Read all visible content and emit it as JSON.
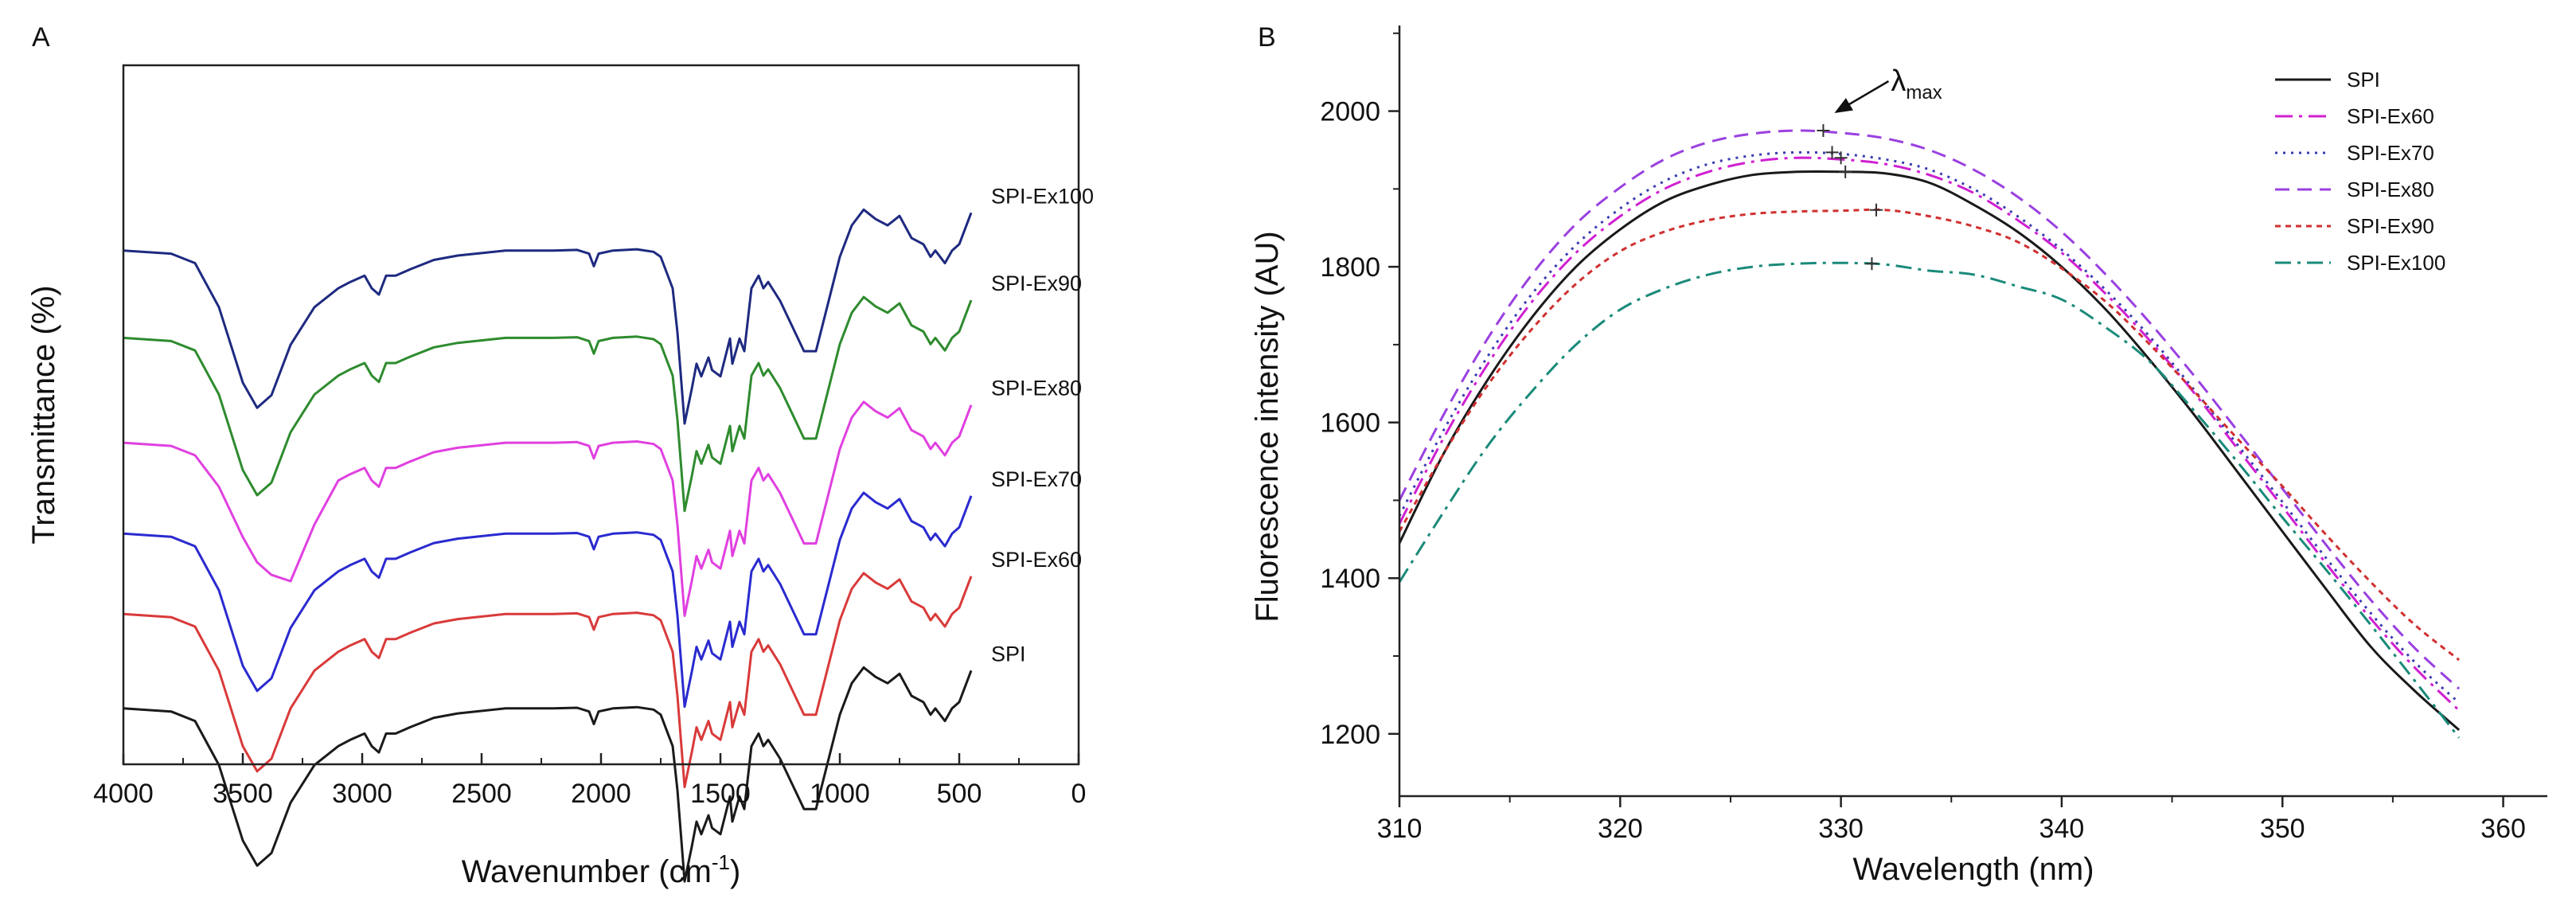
{
  "colors": {
    "SPI": "#1a1a1a",
    "SPI-Ex60": "#d93a3a",
    "SPI-Ex70": "#2a2ad0",
    "SPI-Ex80": "#e040e0",
    "SPI-Ex90": "#2e8b2e",
    "SPI-Ex100": "#1e2a80",
    "B_SPI": "#1a1a1a",
    "B_SPI-Ex60": "#d020d0",
    "B_SPI-Ex70": "#3a3ab0",
    "B_SPI-Ex80": "#9a40e0",
    "B_SPI-Ex90": "#d03030",
    "B_SPI-Ex100": "#1a8a7a"
  },
  "chart_data": [
    {
      "panel": "A",
      "type": "line",
      "title": "",
      "xlabel": "Wavenumber (cm-1)",
      "xlabel_main": "Wavenumber (cm",
      "xlabel_sup": "-1",
      "xlabel_close": ")",
      "ylabel": "Transmittance (%)",
      "xlim": [
        4000,
        0
      ],
      "x_ticks": [
        4000,
        3500,
        3000,
        2500,
        2000,
        1500,
        1000,
        500,
        0
      ],
      "x_tick_labels": [
        "4000",
        "3500",
        "3000",
        "2500",
        "2000",
        "1500",
        "1000",
        "500",
        "0"
      ],
      "ylim": [
        0,
        100
      ],
      "y_ticks_shown": false,
      "profile_x": [
        4000,
        3800,
        3700,
        3600,
        3500,
        3440,
        3380,
        3300,
        3200,
        3100,
        3050,
        2990,
        2960,
        2930,
        2900,
        2860,
        2800,
        2700,
        2600,
        2400,
        2200,
        2100,
        2050,
        2030,
        2010,
        1950,
        1850,
        1780,
        1750,
        1700,
        1680,
        1650,
        1620,
        1600,
        1580,
        1550,
        1535,
        1500,
        1460,
        1450,
        1420,
        1400,
        1370,
        1340,
        1320,
        1300,
        1250,
        1200,
        1150,
        1100,
        1080,
        1000,
        950,
        900,
        850,
        800,
        750,
        700,
        650,
        620,
        600,
        560,
        530,
        500,
        450
      ],
      "profile_delta": [
        0,
        -0.5,
        -2,
        -9,
        -21,
        -25,
        -23,
        -15,
        -9,
        -6,
        -5,
        -4,
        -6,
        -7,
        -4,
        -4,
        -3,
        -1.5,
        -0.8,
        0,
        0,
        0.1,
        -0.5,
        -2.5,
        -0.5,
        0,
        0.2,
        -0.2,
        -1,
        -6,
        -13,
        -27.5,
        -22,
        -18,
        -20,
        -17,
        -19,
        -20,
        -14,
        -18,
        -14,
        -16,
        -6,
        -4,
        -6,
        -5,
        -8,
        -12,
        -16,
        -16,
        -13,
        -1,
        4,
        6.5,
        5,
        4,
        5.5,
        2,
        1,
        -1,
        0,
        -2,
        0,
        1,
        6
      ],
      "series": [
        {
          "name": "SPI-Ex100",
          "label": "SPI-Ex100",
          "baseline": 73.5,
          "color_key": "SPI-Ex100"
        },
        {
          "name": "SPI-Ex90",
          "label": "SPI-Ex90",
          "baseline": 61.0,
          "color_key": "SPI-Ex90"
        },
        {
          "name": "SPI-Ex80",
          "label": "SPI-Ex80",
          "baseline": 46.0,
          "color_key": "SPI-Ex80"
        },
        {
          "name": "SPI-Ex70",
          "label": "SPI-Ex70",
          "baseline": 33.0,
          "color_key": "SPI-Ex70"
        },
        {
          "name": "SPI-Ex60",
          "label": "SPI-Ex60",
          "baseline": 21.5,
          "color_key": "SPI-Ex60"
        },
        {
          "name": "SPI",
          "label": "SPI",
          "baseline": 8.0,
          "color_key": "SPI"
        }
      ]
    },
    {
      "panel": "B",
      "type": "line",
      "title": "",
      "xlabel": "Wavelength (nm)",
      "ylabel": "Fluorescence intensity (AU)",
      "xlim": [
        310,
        362
      ],
      "ylim": [
        1120,
        2110
      ],
      "x_ticks": [
        310,
        320,
        330,
        340,
        350,
        360
      ],
      "x_tick_labels": [
        "310",
        "320",
        "330",
        "340",
        "350",
        "360"
      ],
      "y_ticks": [
        1200,
        1400,
        1600,
        1800,
        2000
      ],
      "y_tick_labels": [
        "1200",
        "1400",
        "1600",
        "1800",
        "2000"
      ],
      "x": [
        310,
        312,
        314,
        316,
        318,
        320,
        322,
        324,
        326,
        328,
        330,
        332,
        334,
        336,
        338,
        340,
        342,
        344,
        346,
        348,
        350,
        352,
        354,
        356,
        358
      ],
      "legend_position": "top-right",
      "annotation": {
        "text": "λ",
        "sub": "max",
        "points_to": "SPI-Ex80 peak",
        "x": 329.2,
        "y": 1975
      },
      "series": [
        {
          "name": "SPI",
          "dash": "solid",
          "color_key": "B_SPI",
          "values": [
            1445,
            1560,
            1655,
            1735,
            1800,
            1848,
            1884,
            1905,
            1918,
            1922,
            1922,
            1920,
            1908,
            1880,
            1845,
            1800,
            1745,
            1680,
            1610,
            1535,
            1460,
            1385,
            1312,
            1255,
            1205
          ],
          "peak": [
            330.2,
            1922
          ]
        },
        {
          "name": "SPI-Ex60",
          "dash": "dashdot",
          "color_key": "B_SPI-Ex60",
          "values": [
            1470,
            1580,
            1675,
            1755,
            1818,
            1865,
            1900,
            1922,
            1935,
            1940,
            1938,
            1932,
            1918,
            1895,
            1860,
            1818,
            1765,
            1705,
            1638,
            1565,
            1492,
            1418,
            1348,
            1285,
            1230
          ],
          "peak": [
            330,
            1940
          ]
        },
        {
          "name": "SPI-Ex70",
          "dash": "dot",
          "color_key": "B_SPI-Ex70",
          "values": [
            1480,
            1590,
            1685,
            1765,
            1828,
            1875,
            1910,
            1932,
            1943,
            1947,
            1945,
            1938,
            1925,
            1900,
            1865,
            1822,
            1770,
            1710,
            1642,
            1570,
            1498,
            1425,
            1355,
            1292,
            1240
          ],
          "peak": [
            329.6,
            1947
          ]
        },
        {
          "name": "SPI-Ex80",
          "dash": "dash",
          "color_key": "B_SPI-Ex80",
          "values": [
            1500,
            1610,
            1708,
            1790,
            1855,
            1902,
            1938,
            1960,
            1971,
            1975,
            1972,
            1965,
            1950,
            1925,
            1890,
            1845,
            1790,
            1728,
            1660,
            1588,
            1515,
            1442,
            1372,
            1310,
            1258
          ],
          "peak": [
            329.2,
            1975
          ]
        },
        {
          "name": "SPI-Ex90",
          "dash": "shortdash",
          "color_key": "B_SPI-Ex90",
          "values": [
            1460,
            1560,
            1648,
            1720,
            1778,
            1820,
            1845,
            1860,
            1868,
            1871,
            1872,
            1873,
            1865,
            1852,
            1832,
            1798,
            1755,
            1700,
            1640,
            1578,
            1518,
            1455,
            1395,
            1340,
            1295
          ],
          "peak": [
            331.6,
            1873
          ]
        },
        {
          "name": "SPI-Ex100",
          "dash": "dashdot2",
          "color_key": "B_SPI-Ex100",
          "values": [
            1395,
            1485,
            1570,
            1640,
            1700,
            1745,
            1772,
            1790,
            1800,
            1804,
            1805,
            1803,
            1795,
            1790,
            1775,
            1758,
            1722,
            1678,
            1615,
            1548,
            1478,
            1410,
            1340,
            1268,
            1195
          ],
          "peak": [
            331.4,
            1804
          ]
        }
      ]
    }
  ]
}
